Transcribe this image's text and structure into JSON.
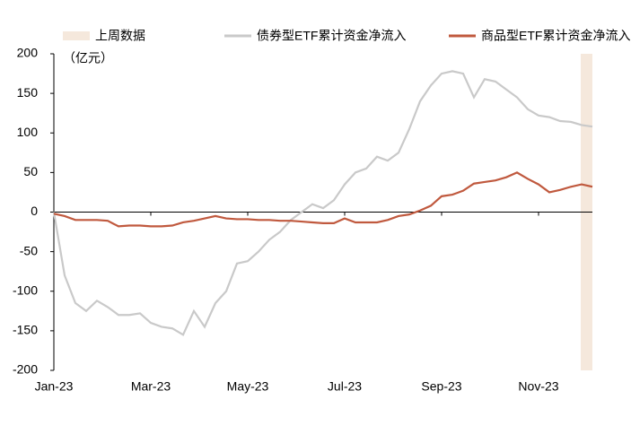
{
  "chart_data": {
    "type": "line",
    "y_label": "（亿元）",
    "categories": [
      "Jan-23",
      null,
      null,
      null,
      null,
      null,
      null,
      null,
      null,
      "Mar-23",
      null,
      null,
      null,
      null,
      null,
      null,
      null,
      null,
      "May-23",
      null,
      null,
      null,
      null,
      null,
      null,
      null,
      null,
      "Jul-23",
      null,
      null,
      null,
      null,
      null,
      null,
      null,
      null,
      "Sep-23",
      null,
      null,
      null,
      null,
      null,
      null,
      null,
      null,
      "Nov-23",
      null,
      null,
      null,
      null,
      null
    ],
    "shade": {
      "name": "上周数据",
      "color": "#f5e8dc"
    },
    "series": [
      {
        "name": "债券型ETF累计资金净流入",
        "color": "#c9c9c9",
        "values": [
          0,
          -80,
          -115,
          -125,
          -112,
          -120,
          -130,
          -130,
          -128,
          -140,
          -145,
          -147,
          -155,
          -125,
          -145,
          -115,
          -100,
          -65,
          -62,
          -50,
          -35,
          -25,
          -10,
          0,
          10,
          5,
          15,
          35,
          50,
          55,
          70,
          65,
          75,
          105,
          140,
          160,
          175,
          178,
          175,
          145,
          168,
          165,
          155,
          145,
          130,
          122,
          120,
          115,
          114,
          110,
          108
        ]
      },
      {
        "name": "商品型ETF累计资金净流入",
        "color": "#c0593e",
        "values": [
          -2,
          -5,
          -10,
          -10,
          -10,
          -11,
          -18,
          -17,
          -17,
          -18,
          -18,
          -17,
          -13,
          -11,
          -8,
          -5,
          -8,
          -9,
          -9,
          -10,
          -10,
          -11,
          -11,
          -12,
          -13,
          -14,
          -14,
          -8,
          -13,
          -13,
          -13,
          -10,
          -5,
          -3,
          2,
          8,
          20,
          22,
          27,
          36,
          38,
          40,
          44,
          50,
          42,
          35,
          25,
          28,
          32,
          35,
          32
        ]
      }
    ],
    "ylim": [
      -200,
      200
    ],
    "yticks": [
      -200,
      -150,
      -100,
      -50,
      0,
      50,
      100,
      150,
      200
    ],
    "grid": false
  }
}
